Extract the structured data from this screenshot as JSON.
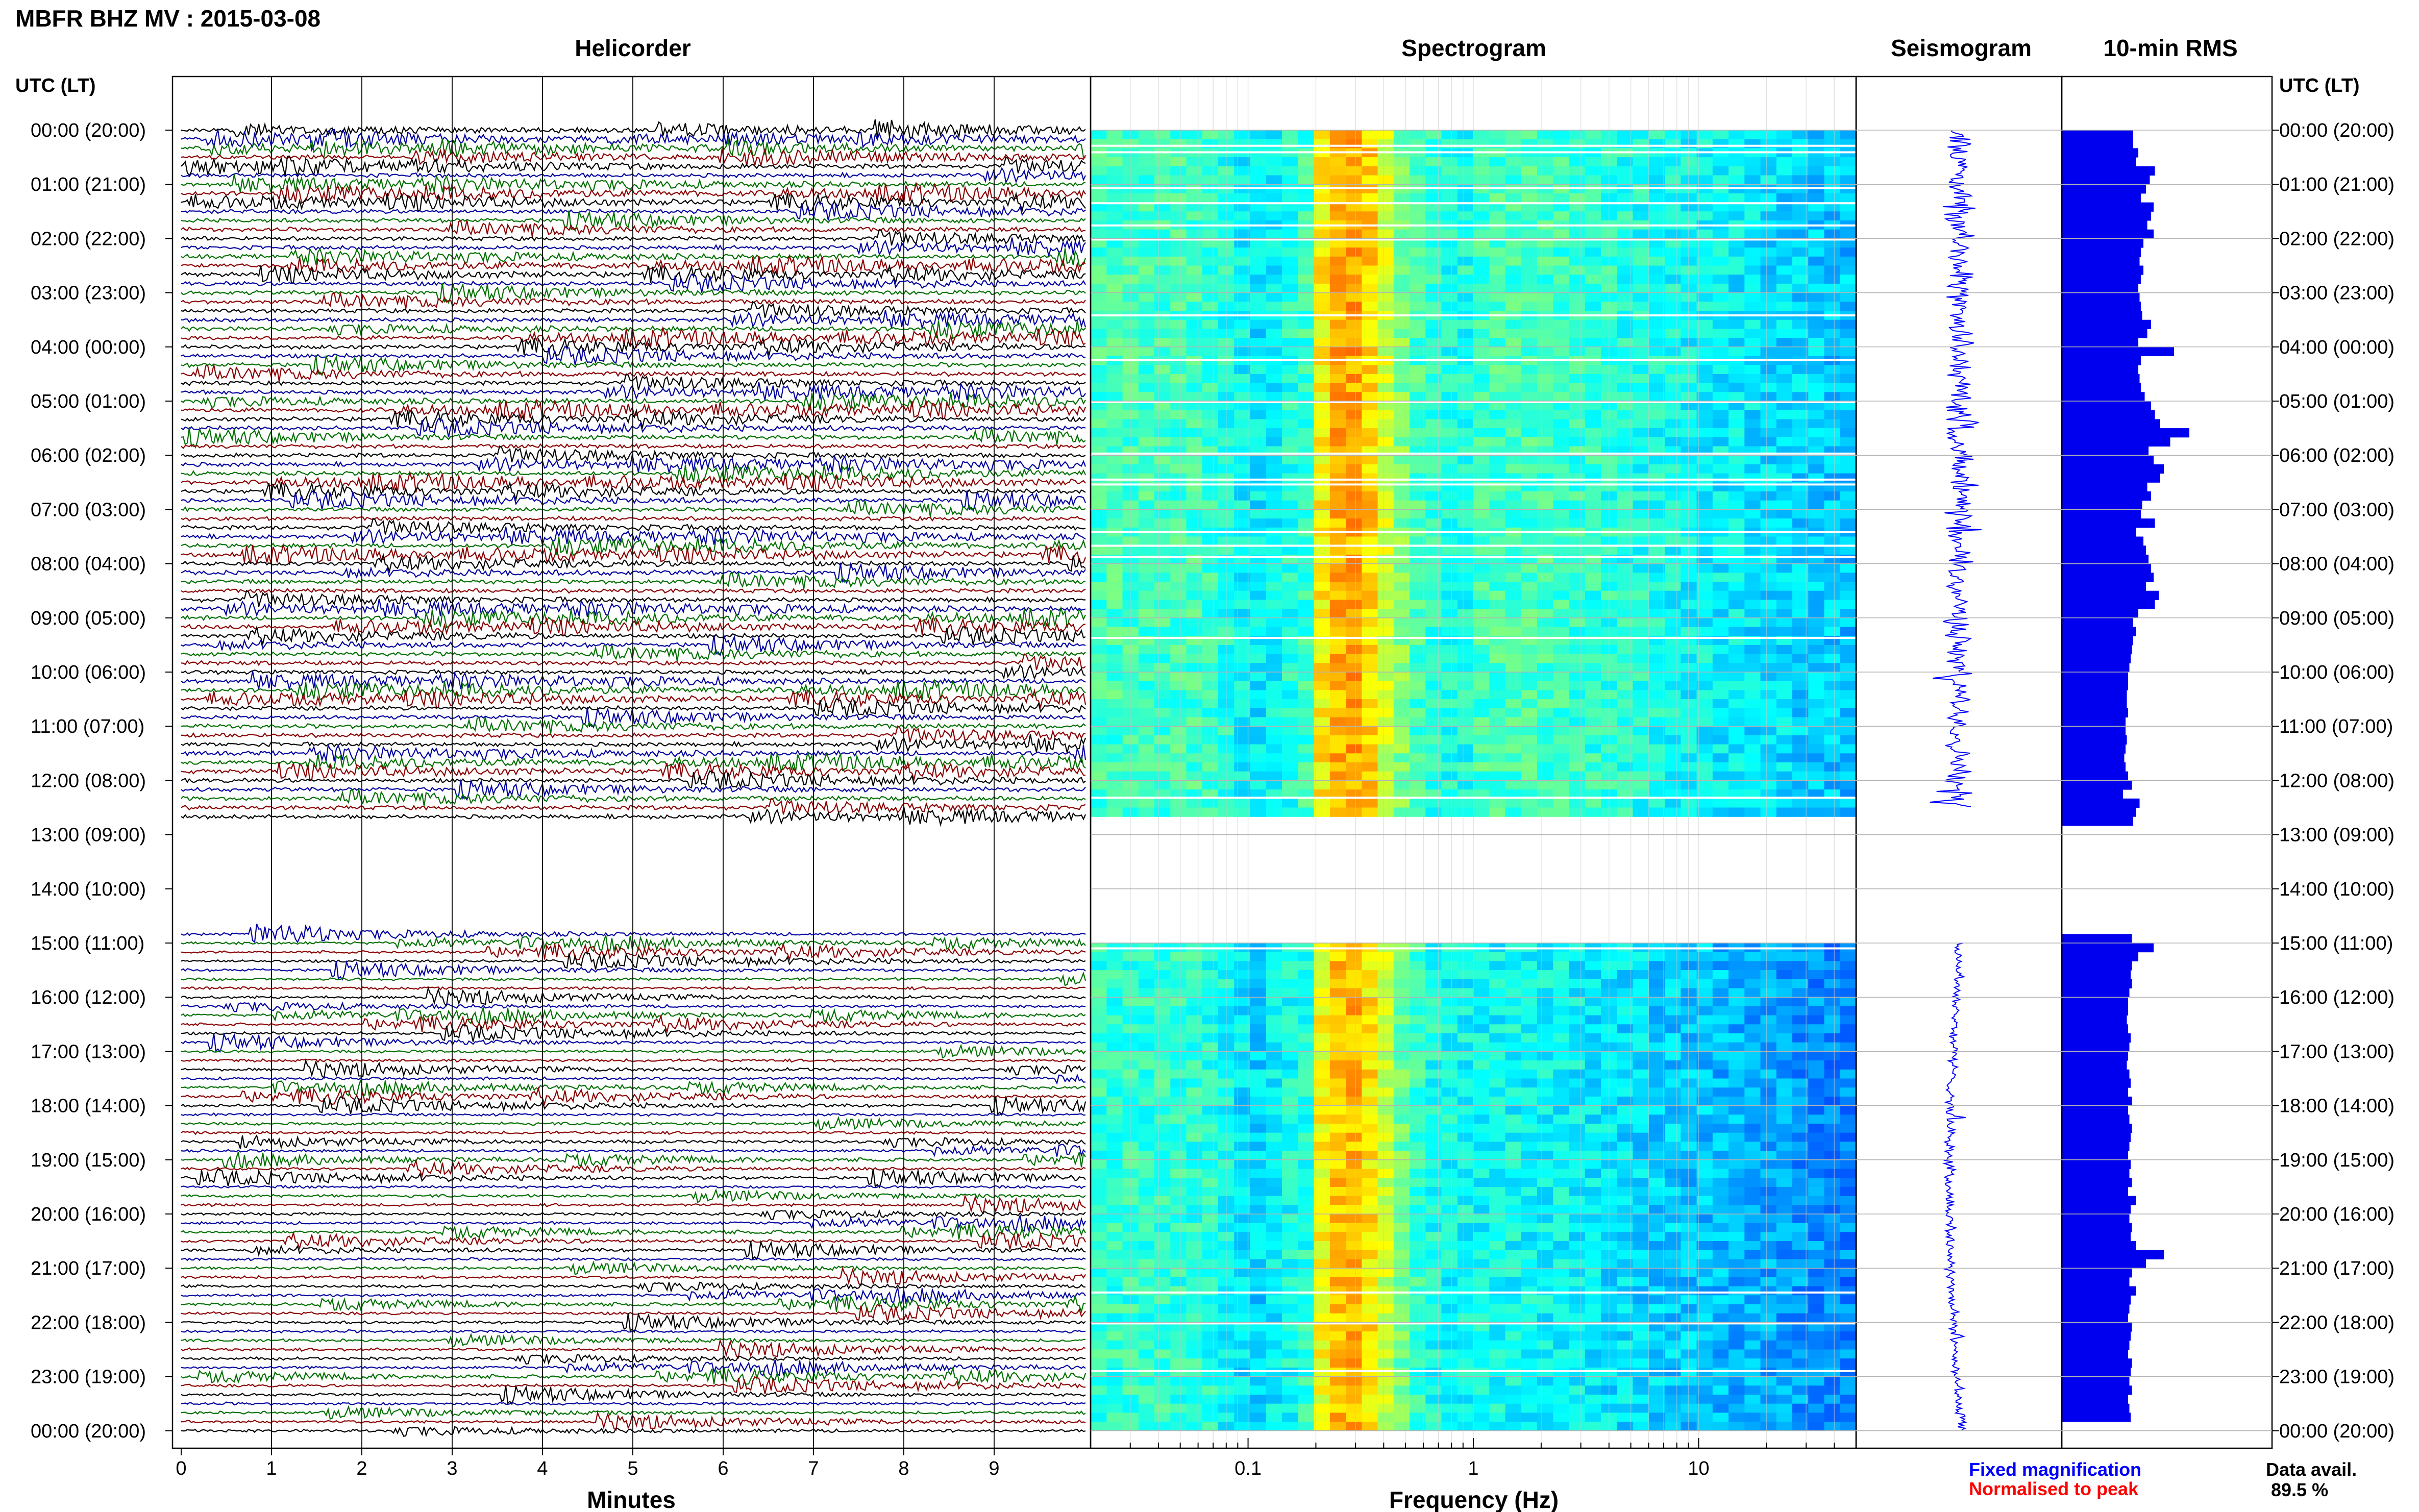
{
  "header": {
    "station_title": "MBFR BHZ MV : 2015-03-08",
    "panel_helicorder": "Helicorder",
    "panel_spectrogram": "Spectrogram",
    "panel_seismogram": "Seismogram",
    "panel_rms": "10-min RMS",
    "time_axis_left": "UTC (LT)",
    "time_axis_right": "UTC (LT)"
  },
  "footer": {
    "xlabel_minutes": "Minutes",
    "xlabel_frequency": "Frequency (Hz)",
    "legend_fixed": "Fixed magnification",
    "legend_normalised": "Normalised to peak",
    "data_avail_label": "Data avail.",
    "data_avail_value": "89.5 %"
  },
  "colors": {
    "trace_cycle": [
      "#000000",
      "#0000a0",
      "#007000",
      "#8b0000"
    ],
    "fixed": "#0000ff",
    "normalised": "#ff0000",
    "rms_bar": "#0000ee",
    "grid": "#b4b4b4"
  },
  "chart_data": [
    {
      "type": "line",
      "title": "Helicorder",
      "xlabel": "Minutes",
      "xticks": [
        "0",
        "1",
        "2",
        "3",
        "4",
        "5",
        "6",
        "7",
        "8",
        "9"
      ],
      "xlim": [
        0,
        10
      ],
      "trace_minutes": 10,
      "traces_per_hour": 6,
      "ylabels": [
        "00:00 (20:00)",
        "01:00 (21:00)",
        "02:00 (22:00)",
        "03:00 (23:00)",
        "04:00 (00:00)",
        "05:00 (01:00)",
        "06:00 (02:00)",
        "07:00 (03:00)",
        "08:00 (04:00)",
        "09:00 (05:00)",
        "10:00 (06:00)",
        "11:00 (07:00)",
        "12:00 (08:00)",
        "13:00 (09:00)",
        "14:00 (10:00)",
        "15:00 (11:00)",
        "16:00 (12:00)",
        "17:00 (13:00)",
        "18:00 (14:00)",
        "19:00 (15:00)",
        "20:00 (16:00)",
        "21:00 (17:00)",
        "22:00 (18:00)",
        "23:00 (19:00)",
        "00:00 (20:00)"
      ],
      "data_gaps_utc": [
        [
          "12:50",
          "14:50"
        ]
      ]
    },
    {
      "type": "heatmap",
      "title": "Spectrogram",
      "xlabel": "Frequency (Hz)",
      "xscale": "log",
      "xlim": [
        0.02,
        50
      ],
      "xticks": [
        "0.1",
        "1",
        "10"
      ],
      "colormap": "jet",
      "data_gaps_utc": [
        [
          "12:40",
          "15:00"
        ]
      ]
    },
    {
      "type": "line",
      "title": "Seismogram",
      "data_gaps_utc": [
        [
          "12:30",
          "15:00"
        ]
      ]
    },
    {
      "type": "bar",
      "title": "10-min RMS",
      "orientation": "horizontal",
      "bin_minutes": 10,
      "values": [
        0.56,
        0.56,
        0.6,
        0.58,
        0.73,
        0.69,
        0.66,
        0.62,
        0.72,
        0.7,
        0.67,
        0.72,
        0.64,
        0.62,
        0.61,
        0.64,
        0.62,
        0.6,
        0.61,
        0.62,
        0.63,
        0.7,
        0.67,
        0.6,
        0.88,
        0.62,
        0.6,
        0.61,
        0.62,
        0.65,
        0.7,
        0.73,
        0.77,
        1.0,
        0.85,
        0.68,
        0.72,
        0.8,
        0.77,
        0.67,
        0.7,
        0.63,
        0.62,
        0.73,
        0.58,
        0.64,
        0.66,
        0.68,
        0.7,
        0.72,
        0.66,
        0.76,
        0.73,
        0.6,
        0.56,
        0.58,
        0.56,
        0.55,
        0.54,
        0.53,
        0.52,
        0.52,
        0.51,
        0.51,
        0.52,
        0.5,
        0.5,
        0.51,
        0.5,
        0.49,
        0.5,
        0.52,
        0.55,
        0.48,
        0.61,
        0.58,
        0.56,
        0.0,
        0.0,
        0.0,
        0.0,
        0.0,
        0.0,
        0.0,
        0.0,
        0.0,
        0.0,
        0.0,
        0.0,
        0.55,
        0.72,
        0.6,
        0.55,
        0.54,
        0.55,
        0.53,
        0.52,
        0.52,
        0.51,
        0.52,
        0.54,
        0.53,
        0.52,
        0.51,
        0.53,
        0.54,
        0.52,
        0.55,
        0.52,
        0.53,
        0.55,
        0.54,
        0.53,
        0.52,
        0.54,
        0.53,
        0.55,
        0.52,
        0.58,
        0.54,
        0.53,
        0.55,
        0.54,
        0.58,
        0.8,
        0.66,
        0.55,
        0.53,
        0.58,
        0.54,
        0.53,
        0.52,
        0.55,
        0.54,
        0.53,
        0.52,
        0.55,
        0.54,
        0.53,
        0.55,
        0.52,
        0.53,
        0.54
      ]
    }
  ]
}
